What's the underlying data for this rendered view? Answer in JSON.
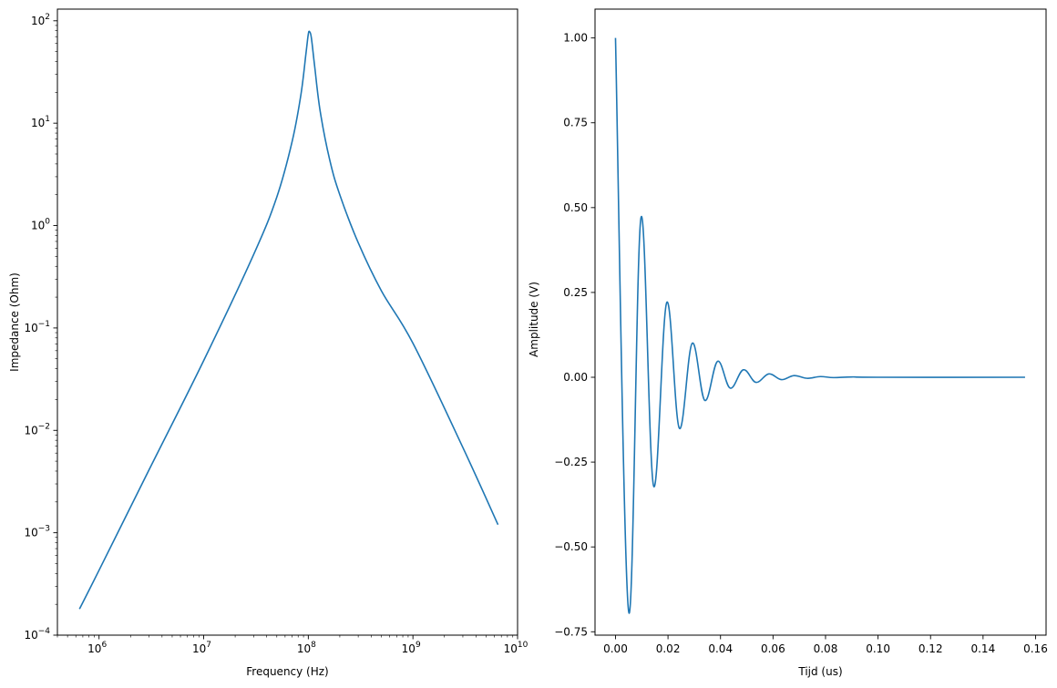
{
  "chart_data": [
    {
      "type": "line",
      "x_scale": "log",
      "y_scale": "log",
      "xlabel": "Frequency (Hz)",
      "ylabel": "Impedance (Ohm)",
      "xlim": [
        400000,
        10000000000
      ],
      "ylim": [
        0.0001,
        130
      ],
      "xticks": [
        {
          "value": 1000000,
          "base": "10",
          "exp": "6"
        },
        {
          "value": 10000000,
          "base": "10",
          "exp": "7"
        },
        {
          "value": 100000000,
          "base": "10",
          "exp": "8"
        },
        {
          "value": 1000000000,
          "base": "10",
          "exp": "9"
        },
        {
          "value": 10000000000,
          "base": "10",
          "exp": "10"
        }
      ],
      "yticks": [
        {
          "value": 0.0001,
          "base": "10",
          "exp": "−4"
        },
        {
          "value": 0.001,
          "base": "10",
          "exp": "−3"
        },
        {
          "value": 0.01,
          "base": "10",
          "exp": "−2"
        },
        {
          "value": 0.1,
          "base": "10",
          "exp": "−1"
        },
        {
          "value": 1,
          "base": "10",
          "exp": "0"
        },
        {
          "value": 10,
          "base": "10",
          "exp": "1"
        },
        {
          "value": 100,
          "base": "10",
          "exp": "2"
        }
      ],
      "series": [
        {
          "color": "#1f77b4",
          "x": [
            650000,
            1000000,
            3000000,
            10000000,
            30000000,
            50000000,
            70000000,
            85000000,
            95000000,
            100000000,
            103000000,
            107000000,
            115000000,
            130000000,
            160000000,
            200000000,
            300000000,
            500000000,
            1000000000,
            3000000000,
            6500000000
          ],
          "y": [
            0.00018,
            0.00043,
            0.0041,
            0.048,
            0.52,
            1.9,
            6.6,
            19,
            48,
            74,
            78,
            68,
            36,
            13,
            4.4,
            2.0,
            0.68,
            0.23,
            0.071,
            0.0068,
            0.0012
          ]
        }
      ]
    },
    {
      "type": "line",
      "xlabel": "Tijd (us)",
      "ylabel": "Amplitude (V)",
      "xlim": [
        -0.0078,
        0.164
      ],
      "ylim": [
        -0.76,
        1.085
      ],
      "xticks": [
        "0.00",
        "0.02",
        "0.04",
        "0.06",
        "0.08",
        "0.10",
        "0.12",
        "0.14",
        "0.16"
      ],
      "yticks": [
        "−0.75",
        "−0.50",
        "−0.25",
        "0.00",
        "0.25",
        "0.50",
        "0.75",
        "1.00"
      ],
      "series": [
        {
          "color": "#1f77b4",
          "signal": "damped sine decaying toward 0",
          "x": [
            0,
            0.005,
            0.0097,
            0.0145,
            0.0195,
            0.0243,
            0.0292,
            0.034,
            0.0389,
            0.0437,
            0.0487,
            0.0535,
            0.0584,
            0.0632,
            0.068,
            0.073,
            0.078,
            0.083,
            0.09,
            0.1,
            0.156
          ],
          "y": [
            1.0,
            -0.69,
            0.47,
            -0.32,
            0.22,
            -0.15,
            0.1,
            -0.068,
            0.047,
            -0.032,
            0.022,
            -0.015,
            0.01,
            -0.007,
            0.005,
            -0.003,
            0.002,
            -0.001,
            0.001,
            0.0,
            0.0
          ]
        }
      ]
    }
  ]
}
